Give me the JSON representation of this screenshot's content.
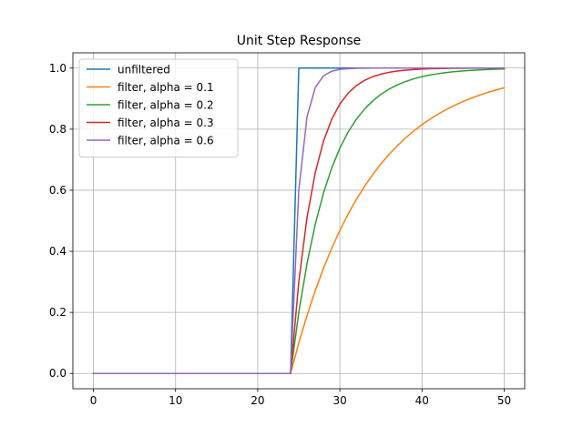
{
  "chart_data": {
    "type": "line",
    "title": "Unit Step Response",
    "xlabel": "",
    "ylabel": "",
    "xlim": [
      -2.5,
      52.5
    ],
    "ylim": [
      -0.05,
      1.05
    ],
    "xticks": [
      0,
      10,
      20,
      30,
      40,
      50
    ],
    "xtick_labels": [
      "0",
      "10",
      "20",
      "30",
      "40",
      "50"
    ],
    "yticks": [
      0.0,
      0.2,
      0.4,
      0.6,
      0.8,
      1.0
    ],
    "ytick_labels": [
      "0.0",
      "0.2",
      "0.4",
      "0.6",
      "0.8",
      "1.0"
    ],
    "grid": true,
    "legend_position": "top-left",
    "step_index": 25,
    "n_points": 51,
    "series": [
      {
        "name": "unfiltered",
        "alpha": null,
        "color": "#1f77b4"
      },
      {
        "name": "filter, alpha = 0.1",
        "alpha": 0.1,
        "color": "#ff7f0e"
      },
      {
        "name": "filter, alpha = 0.2",
        "alpha": 0.2,
        "color": "#2ca02c"
      },
      {
        "name": "filter, alpha = 0.3",
        "alpha": 0.3,
        "color": "#d62728"
      },
      {
        "name": "filter, alpha = 0.6",
        "alpha": 0.6,
        "color": "#9467bd"
      }
    ]
  }
}
